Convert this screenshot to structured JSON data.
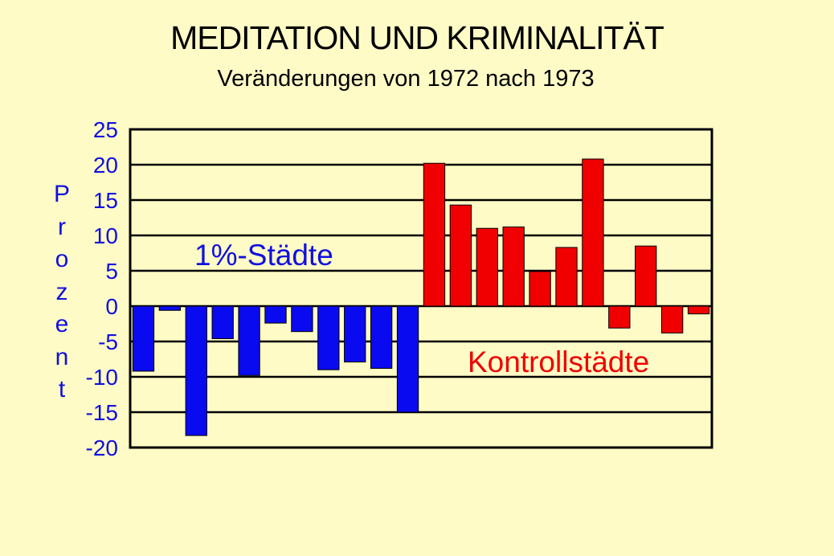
{
  "chart_data": {
    "type": "bar",
    "title": "MEDITATION UND KRIMINALITÄT",
    "subtitle": "Veränderungen von 1972 nach 1973",
    "ylabel": "Prozent",
    "xlabel": "",
    "ylim": [
      -20,
      25
    ],
    "yticks": [
      25,
      20,
      15,
      10,
      5,
      0,
      -5,
      -10,
      -15,
      -20
    ],
    "grid": true,
    "series": [
      {
        "name": "1%-Städte",
        "color": "#0A0AF0",
        "values": [
          -9.2,
          -0.6,
          -18.3,
          -4.6,
          -9.8,
          -2.4,
          -3.6,
          -9.0,
          -7.9,
          -8.8,
          -15.0
        ]
      },
      {
        "name": "Kontrollstädte",
        "color": "#F00000",
        "values": [
          20.2,
          14.3,
          11.0,
          11.2,
          4.9,
          8.3,
          20.8,
          -3.1,
          8.5,
          -3.8,
          -1.1
        ]
      }
    ],
    "annotations": [
      {
        "text": "1%-Städte",
        "color": "#1010E0"
      },
      {
        "text": "Kontrollstädte",
        "color": "#F00000"
      }
    ]
  }
}
